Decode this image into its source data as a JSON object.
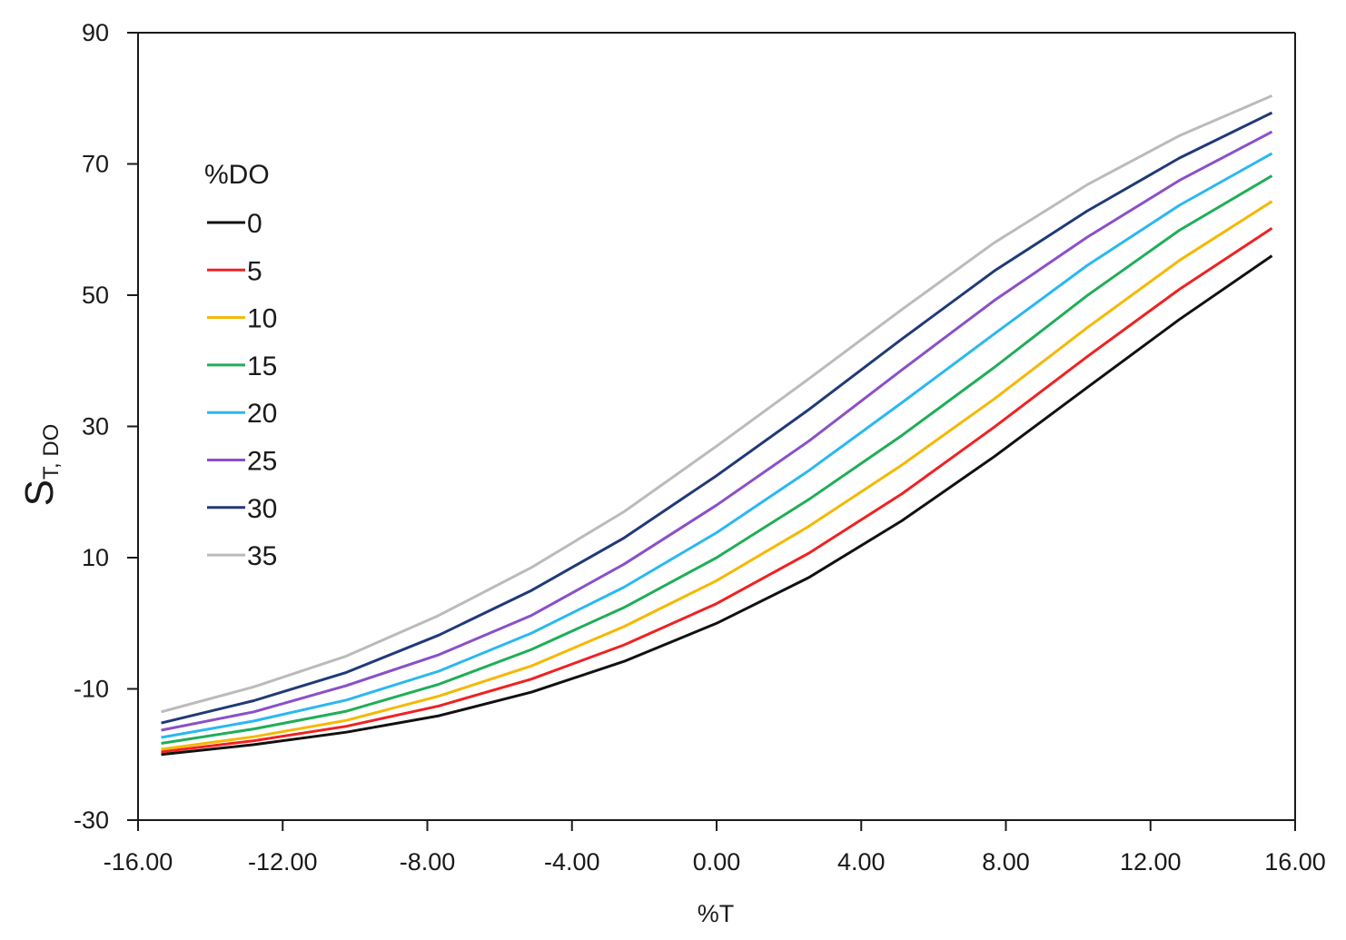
{
  "chart_data": {
    "type": "line",
    "title": "",
    "xlabel": "%T",
    "ylabel_main": "S",
    "ylabel_sub": "T, DO",
    "xlim": [
      -16,
      16
    ],
    "ylim": [
      -30,
      90
    ],
    "x_tick_values": [
      -16,
      -12,
      -8,
      -4,
      0,
      4,
      8,
      12,
      16
    ],
    "x_tick_labels": [
      "-16.00",
      "-12.00",
      "-8.00",
      "-4.00",
      "0.00",
      "4.00",
      "8.00",
      "12.00",
      "16.00"
    ],
    "y_tick_values": [
      -30,
      -10,
      10,
      30,
      50,
      70,
      90
    ],
    "y_tick_labels": [
      "-30",
      "-10",
      "10",
      "30",
      "50",
      "70",
      "90"
    ],
    "grid": false,
    "legend_title": "%DO",
    "legend_position": "top-left",
    "x": [
      -15.36,
      -12.8,
      -10.24,
      -7.68,
      -5.12,
      -2.56,
      0.0,
      2.56,
      5.12,
      7.68,
      10.24,
      12.8,
      15.36
    ],
    "series": [
      {
        "name": "0",
        "color": "#111111",
        "values": [
          -20.0,
          -18.5,
          -16.6,
          -14.1,
          -10.5,
          -5.8,
          0.0,
          7.0,
          15.6,
          25.4,
          35.9,
          46.3,
          56.0
        ]
      },
      {
        "name": "5",
        "color": "#ee2222",
        "values": [
          -19.6,
          -17.9,
          -15.7,
          -12.6,
          -8.5,
          -3.3,
          3.0,
          10.7,
          19.7,
          29.9,
          40.6,
          50.9,
          60.2
        ]
      },
      {
        "name": "10",
        "color": "#f5b800",
        "values": [
          -19.2,
          -17.3,
          -14.8,
          -11.1,
          -6.5,
          -0.5,
          6.5,
          14.8,
          24.1,
          34.2,
          45.0,
          55.3,
          64.3
        ]
      },
      {
        "name": "15",
        "color": "#1fae57",
        "values": [
          -18.3,
          -16.1,
          -13.4,
          -9.3,
          -4.0,
          2.4,
          10.0,
          18.9,
          28.6,
          39.0,
          49.9,
          59.9,
          68.2
        ]
      },
      {
        "name": "20",
        "color": "#2ab8f0",
        "values": [
          -17.4,
          -14.9,
          -11.7,
          -7.3,
          -1.5,
          5.5,
          13.8,
          23.3,
          33.6,
          44.1,
          54.5,
          63.7,
          71.6
        ]
      },
      {
        "name": "25",
        "color": "#8a50c8",
        "values": [
          -16.3,
          -13.5,
          -9.5,
          -4.8,
          1.2,
          9.0,
          18.0,
          27.8,
          38.6,
          49.2,
          58.8,
          67.5,
          74.9
        ]
      },
      {
        "name": "30",
        "color": "#203a78",
        "values": [
          -15.2,
          -11.8,
          -7.5,
          -1.8,
          5.0,
          13.0,
          22.5,
          32.6,
          43.3,
          53.7,
          62.8,
          70.9,
          77.8
        ]
      },
      {
        "name": "35",
        "color": "#bbbbbb",
        "values": [
          -13.5,
          -9.7,
          -5.0,
          1.2,
          8.5,
          17.0,
          27.0,
          37.3,
          47.8,
          58.0,
          66.8,
          74.3,
          80.4
        ]
      }
    ]
  }
}
